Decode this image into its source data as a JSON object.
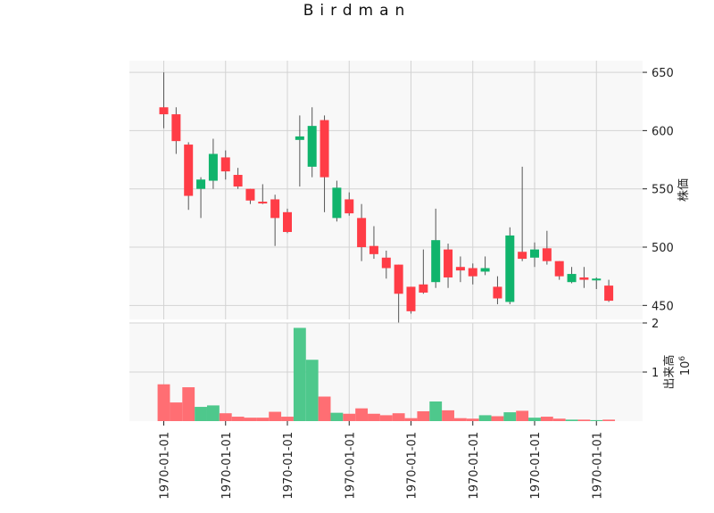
{
  "chart_data": {
    "type": "candlestick",
    "title": "Birdman",
    "price_axis": {
      "label": "株価",
      "ticks": [
        450,
        500,
        550,
        600,
        650
      ],
      "range": [
        438,
        660
      ]
    },
    "volume_axis": {
      "label": "出来高",
      "exponent_label": "10",
      "exponent": "6",
      "ticks": [
        1,
        2
      ],
      "range": [
        0,
        2
      ]
    },
    "x_tick_labels": [
      "1970-01-01",
      "1970-01-01",
      "1970-01-01",
      "1970-01-01",
      "1970-01-01",
      "1970-01-01",
      "1970-01-01",
      "1970-01-01"
    ],
    "x_tick_positions": [
      0,
      5,
      10,
      15,
      20,
      25,
      30,
      35
    ],
    "colors": {
      "up": "#10b46c",
      "down": "#ff3c46",
      "up_volume": "#4ec88c",
      "down_volume": "#ff6e73",
      "wick": "#555555",
      "grid": "#d3d3d3",
      "background": "#f8f8f8"
    },
    "candles": [
      {
        "open": 620,
        "high": 650,
        "low": 602,
        "close": 614
      },
      {
        "open": 614,
        "high": 620,
        "low": 580,
        "close": 591
      },
      {
        "open": 588,
        "high": 590,
        "low": 532,
        "close": 544
      },
      {
        "open": 550,
        "high": 560,
        "low": 525,
        "close": 558
      },
      {
        "open": 557,
        "high": 593,
        "low": 550,
        "close": 580
      },
      {
        "open": 577,
        "high": 583,
        "low": 558,
        "close": 565
      },
      {
        "open": 562,
        "high": 568,
        "low": 550,
        "close": 552
      },
      {
        "open": 550,
        "high": 550,
        "low": 537,
        "close": 540
      },
      {
        "open": 539,
        "high": 554,
        "low": 537,
        "close": 538
      },
      {
        "open": 541,
        "high": 545,
        "low": 501,
        "close": 525
      },
      {
        "open": 530,
        "high": 533,
        "low": 512,
        "close": 513
      },
      {
        "open": 592,
        "high": 613,
        "low": 552,
        "close": 595
      },
      {
        "open": 569,
        "high": 620,
        "low": 560,
        "close": 604
      },
      {
        "open": 609,
        "high": 613,
        "low": 530,
        "close": 560
      },
      {
        "open": 525,
        "high": 557,
        "low": 522,
        "close": 551
      },
      {
        "open": 541,
        "high": 547,
        "low": 527,
        "close": 529
      },
      {
        "open": 525,
        "high": 537,
        "low": 488,
        "close": 500
      },
      {
        "open": 501,
        "high": 518,
        "low": 490,
        "close": 494
      },
      {
        "open": 491,
        "high": 497,
        "low": 473,
        "close": 482
      },
      {
        "open": 485,
        "high": 485,
        "low": 430,
        "close": 460
      },
      {
        "open": 466,
        "high": 466,
        "low": 443,
        "close": 445
      },
      {
        "open": 468,
        "high": 498,
        "low": 460,
        "close": 461
      },
      {
        "open": 470,
        "high": 533,
        "low": 465,
        "close": 506
      },
      {
        "open": 498,
        "high": 503,
        "low": 465,
        "close": 474
      },
      {
        "open": 483,
        "high": 492,
        "low": 470,
        "close": 480
      },
      {
        "open": 482,
        "high": 486,
        "low": 468,
        "close": 475
      },
      {
        "open": 479,
        "high": 492,
        "low": 476,
        "close": 482
      },
      {
        "open": 466,
        "high": 475,
        "low": 451,
        "close": 456
      },
      {
        "open": 453,
        "high": 517,
        "low": 451,
        "close": 510
      },
      {
        "open": 496,
        "high": 569,
        "low": 488,
        "close": 490
      },
      {
        "open": 491,
        "high": 504,
        "low": 483,
        "close": 498
      },
      {
        "open": 499,
        "high": 514,
        "low": 485,
        "close": 488
      },
      {
        "open": 488,
        "high": 488,
        "low": 472,
        "close": 475
      },
      {
        "open": 470,
        "high": 483,
        "low": 469,
        "close": 477
      },
      {
        "open": 474,
        "high": 483,
        "low": 465,
        "close": 472
      },
      {
        "open": 472,
        "high": 474,
        "low": 464,
        "close": 473
      },
      {
        "open": 467,
        "high": 472,
        "low": 453,
        "close": 454
      }
    ],
    "volumes": [
      0.75,
      0.38,
      0.69,
      0.29,
      0.32,
      0.16,
      0.09,
      0.07,
      0.07,
      0.19,
      0.09,
      1.9,
      1.25,
      0.5,
      0.17,
      0.15,
      0.26,
      0.15,
      0.12,
      0.16,
      0.06,
      0.2,
      0.4,
      0.22,
      0.06,
      0.05,
      0.12,
      0.1,
      0.18,
      0.21,
      0.07,
      0.09,
      0.05,
      0.03,
      0.03,
      0.02,
      0.03
    ]
  }
}
